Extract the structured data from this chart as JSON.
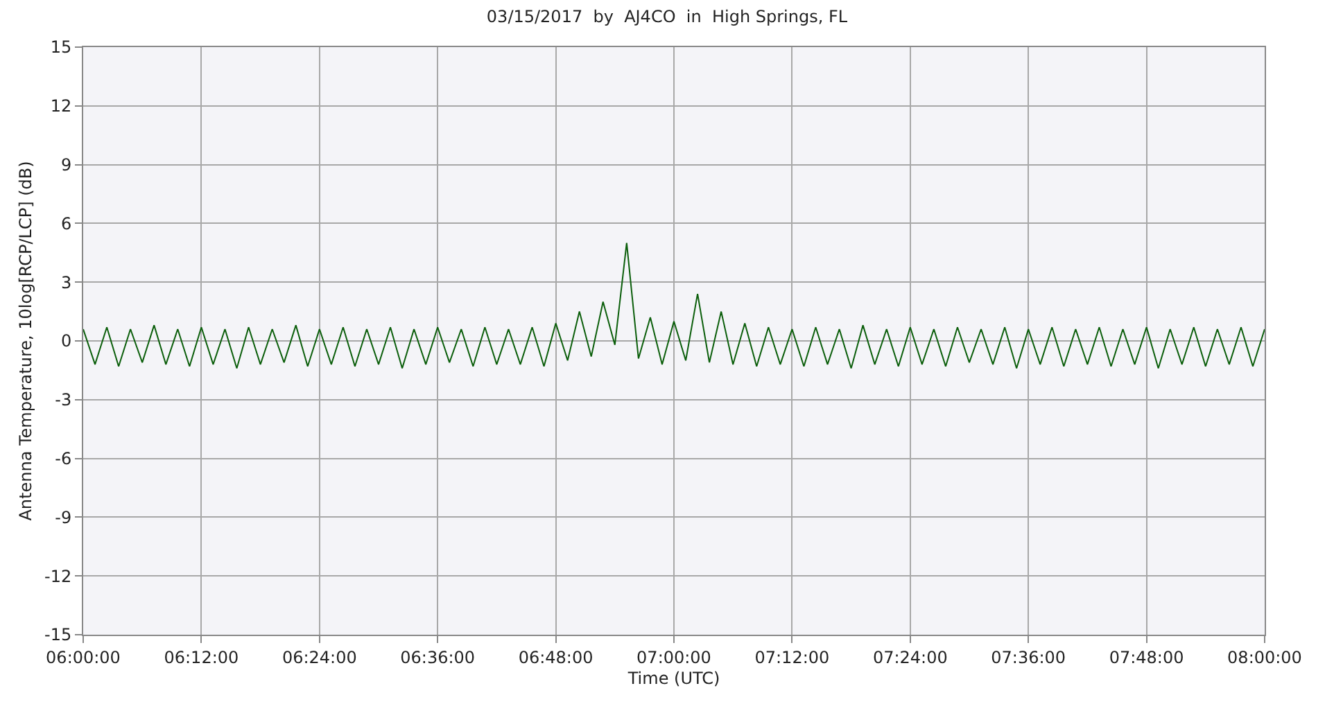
{
  "chart_data": {
    "type": "line",
    "title": "03/15/2017  by  AJ4CO  in  High Springs, FL",
    "xlabel": "Time (UTC)",
    "ylabel": "Antenna Temperature, 10log[RCP/LCP] (dB)",
    "x": [
      6.0,
      6.02,
      6.04,
      6.06,
      6.08,
      6.1,
      6.12,
      6.14,
      6.16,
      6.18,
      6.2,
      6.22,
      6.24,
      6.26,
      6.28,
      6.3,
      6.32,
      6.34,
      6.36,
      6.38,
      6.4,
      6.42,
      6.44,
      6.46,
      6.48,
      6.5,
      6.52,
      6.54,
      6.56,
      6.58,
      6.6,
      6.62,
      6.64,
      6.66,
      6.68,
      6.7,
      6.72,
      6.74,
      6.76,
      6.78,
      6.8,
      6.82,
      6.84,
      6.86,
      6.88,
      6.9,
      6.92,
      6.94,
      6.96,
      6.98,
      7.0,
      7.02,
      7.04,
      7.06,
      7.08,
      7.1,
      7.12,
      7.14,
      7.16,
      7.18,
      7.2,
      7.22,
      7.24,
      7.26,
      7.28,
      7.3,
      7.32,
      7.34,
      7.36,
      7.38,
      7.4,
      7.42,
      7.44,
      7.46,
      7.48,
      7.5,
      7.52,
      7.54,
      7.56,
      7.58,
      7.6,
      7.62,
      7.64,
      7.66,
      7.68,
      7.7,
      7.72,
      7.74,
      7.76,
      7.78,
      7.8,
      7.82,
      7.84,
      7.86,
      7.88,
      7.9,
      7.92,
      7.94,
      7.96,
      7.98,
      8.0
    ],
    "series": [
      {
        "color": "#0b5e0b",
        "values": [
          0.6,
          -1.2,
          0.7,
          -1.3,
          0.6,
          -1.1,
          0.8,
          -1.2,
          0.6,
          -1.3,
          0.7,
          -1.2,
          0.6,
          -1.4,
          0.7,
          -1.2,
          0.6,
          -1.1,
          0.8,
          -1.3,
          0.6,
          -1.2,
          0.7,
          -1.3,
          0.6,
          -1.2,
          0.7,
          -1.4,
          0.6,
          -1.2,
          0.7,
          -1.1,
          0.6,
          -1.3,
          0.7,
          -1.2,
          0.6,
          -1.2,
          0.7,
          -1.3,
          0.9,
          -1.0,
          1.5,
          -0.8,
          2.0,
          -0.2,
          5.0,
          -0.9,
          1.2,
          -1.2,
          1.0,
          -1.0,
          2.4,
          -1.1,
          1.5,
          -1.2,
          0.9,
          -1.3,
          0.7,
          -1.2,
          0.6,
          -1.3,
          0.7,
          -1.2,
          0.6,
          -1.4,
          0.8,
          -1.2,
          0.6,
          -1.3,
          0.7,
          -1.2,
          0.6,
          -1.3,
          0.7,
          -1.1,
          0.6,
          -1.2,
          0.7,
          -1.4,
          0.6,
          -1.2,
          0.7,
          -1.3,
          0.6,
          -1.2,
          0.7,
          -1.3,
          0.6,
          -1.2,
          0.7,
          -1.4,
          0.6,
          -1.2,
          0.7,
          -1.3,
          0.6,
          -1.2,
          0.7,
          -1.3,
          0.6
        ]
      }
    ],
    "xlim": [
      6,
      8
    ],
    "xticks": [
      {
        "value": 6,
        "label": "06:00:00"
      },
      {
        "value": 6.2,
        "label": "06:12:00"
      },
      {
        "value": 6.4,
        "label": "06:24:00"
      },
      {
        "value": 6.6,
        "label": "06:36:00"
      },
      {
        "value": 6.8,
        "label": "06:48:00"
      },
      {
        "value": 7,
        "label": "07:00:00"
      },
      {
        "value": 7.2,
        "label": "07:12:00"
      },
      {
        "value": 7.4,
        "label": "07:24:00"
      },
      {
        "value": 7.6,
        "label": "07:36:00"
      },
      {
        "value": 7.8,
        "label": "07:48:00"
      },
      {
        "value": 8,
        "label": "08:00:00"
      }
    ],
    "ylim": [
      -15,
      15
    ],
    "yticks": [
      -15,
      -12,
      -9,
      -6,
      -3,
      0,
      3,
      6,
      9,
      12,
      15
    ],
    "grid": true,
    "marker": "none",
    "line_style": "solid"
  }
}
